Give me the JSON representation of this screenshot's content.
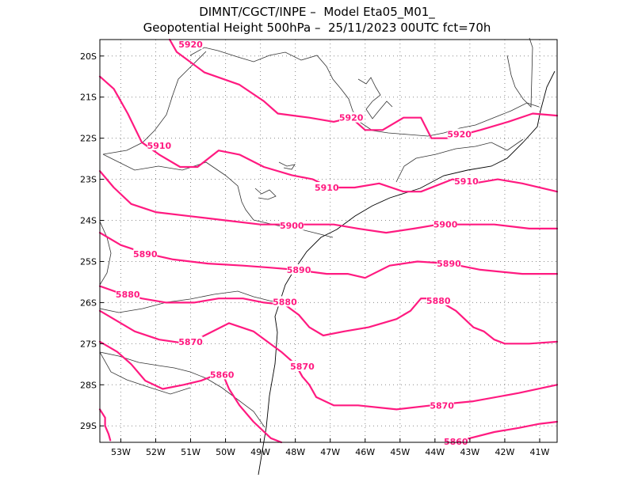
{
  "title": {
    "line1": "DIMNT/CGCT/INPE –  Model Eta05_M01_",
    "line2": "Geopotential Height 500hPa –  25/11/2023 00UTC fct=70h"
  },
  "map": {
    "lon_range": [
      -53.6,
      -40.5
    ],
    "lat_range": [
      -29.4,
      -19.6
    ],
    "lon_ticks": [
      {
        "value": -53,
        "label": "53W"
      },
      {
        "value": -52,
        "label": "52W"
      },
      {
        "value": -51,
        "label": "51W"
      },
      {
        "value": -50,
        "label": "50W"
      },
      {
        "value": -49,
        "label": "49W"
      },
      {
        "value": -48,
        "label": "48W"
      },
      {
        "value": -47,
        "label": "47W"
      },
      {
        "value": -46,
        "label": "46W"
      },
      {
        "value": -45,
        "label": "45W"
      },
      {
        "value": -44,
        "label": "44W"
      },
      {
        "value": -43,
        "label": "43W"
      },
      {
        "value": -42,
        "label": "42W"
      },
      {
        "value": -41,
        "label": "41W"
      }
    ],
    "lat_ticks": [
      {
        "value": -20,
        "label": "20S"
      },
      {
        "value": -21,
        "label": "21S"
      },
      {
        "value": -22,
        "label": "22S"
      },
      {
        "value": -23,
        "label": "23S"
      },
      {
        "value": -24,
        "label": "24S"
      },
      {
        "value": -25,
        "label": "25S"
      },
      {
        "value": -26,
        "label": "26S"
      },
      {
        "value": -27,
        "label": "27S"
      },
      {
        "value": -28,
        "label": "28S"
      },
      {
        "value": -29,
        "label": "29S"
      }
    ],
    "contour_color": "#ff1a80",
    "contours": [
      {
        "level": "5920",
        "points": [
          [
            -51.6,
            -19.6
          ],
          [
            -51.4,
            -19.9
          ],
          [
            -50.6,
            -20.4
          ],
          [
            -49.6,
            -20.7
          ],
          [
            -48.9,
            -21.1
          ],
          [
            -48.5,
            -21.4
          ],
          [
            -47.6,
            -21.5
          ],
          [
            -46.9,
            -21.6
          ],
          [
            -46.4,
            -21.5
          ],
          [
            -46.0,
            -21.8
          ],
          [
            -45.5,
            -21.8
          ],
          [
            -44.9,
            -21.5
          ],
          [
            -44.4,
            -21.5
          ],
          [
            -44.1,
            -22.0
          ],
          [
            -43.6,
            -22.0
          ],
          [
            -42.7,
            -21.8
          ],
          [
            -41.9,
            -21.6
          ],
          [
            -41.2,
            -21.4
          ],
          [
            -40.5,
            -21.45
          ]
        ],
        "labels": [
          {
            "text": "5920",
            "at": [
              -51.0,
              -19.72
            ]
          },
          {
            "text": "5920",
            "at": [
              -46.4,
              -21.5
            ]
          },
          {
            "text": "5920",
            "at": [
              -43.3,
              -21.9
            ]
          }
        ]
      },
      {
        "level": "5910",
        "points": [
          [
            -53.6,
            -20.5
          ],
          [
            -53.2,
            -20.8
          ],
          [
            -52.8,
            -21.4
          ],
          [
            -52.4,
            -22.1
          ],
          [
            -51.9,
            -22.4
          ],
          [
            -51.3,
            -22.7
          ],
          [
            -50.8,
            -22.7
          ],
          [
            -50.2,
            -22.3
          ],
          [
            -49.6,
            -22.4
          ],
          [
            -48.9,
            -22.7
          ],
          [
            -48.1,
            -22.9
          ],
          [
            -47.5,
            -23.0
          ],
          [
            -47.0,
            -23.2
          ],
          [
            -46.3,
            -23.2
          ],
          [
            -45.6,
            -23.1
          ],
          [
            -44.9,
            -23.3
          ],
          [
            -44.4,
            -23.3
          ],
          [
            -43.5,
            -23.0
          ],
          [
            -42.9,
            -23.1
          ],
          [
            -42.2,
            -23.0
          ],
          [
            -41.5,
            -23.1
          ],
          [
            -40.5,
            -23.3
          ]
        ],
        "labels": [
          {
            "text": "5910",
            "at": [
              -51.9,
              -22.18
            ]
          },
          {
            "text": "5910",
            "at": [
              -47.1,
              -23.2
            ]
          },
          {
            "text": "5910",
            "at": [
              -43.1,
              -23.05
            ]
          }
        ]
      },
      {
        "level": "5900",
        "points": [
          [
            -53.6,
            -22.8
          ],
          [
            -53.2,
            -23.2
          ],
          [
            -52.7,
            -23.6
          ],
          [
            -52.0,
            -23.8
          ],
          [
            -51.0,
            -23.9
          ],
          [
            -50.0,
            -24.0
          ],
          [
            -49.0,
            -24.1
          ],
          [
            -48.3,
            -24.1
          ],
          [
            -47.6,
            -24.1
          ],
          [
            -46.9,
            -24.1
          ],
          [
            -46.2,
            -24.2
          ],
          [
            -45.4,
            -24.3
          ],
          [
            -44.6,
            -24.2
          ],
          [
            -43.9,
            -24.1
          ],
          [
            -43.2,
            -24.1
          ],
          [
            -42.3,
            -24.1
          ],
          [
            -41.3,
            -24.2
          ],
          [
            -40.5,
            -24.2
          ]
        ],
        "labels": [
          {
            "text": "5900",
            "at": [
              -48.1,
              -24.12
            ]
          },
          {
            "text": "5900",
            "at": [
              -43.7,
              -24.1
            ]
          }
        ]
      },
      {
        "level": "5890",
        "points": [
          [
            -53.6,
            -24.3
          ],
          [
            -53.0,
            -24.6
          ],
          [
            -52.3,
            -24.8
          ],
          [
            -51.5,
            -24.95
          ],
          [
            -50.5,
            -25.05
          ],
          [
            -49.5,
            -25.1
          ],
          [
            -48.7,
            -25.15
          ],
          [
            -48.0,
            -25.2
          ],
          [
            -47.1,
            -25.3
          ],
          [
            -46.5,
            -25.3
          ],
          [
            -46.0,
            -25.4
          ],
          [
            -45.3,
            -25.1
          ],
          [
            -44.5,
            -25.0
          ],
          [
            -43.6,
            -25.05
          ],
          [
            -42.7,
            -25.2
          ],
          [
            -41.5,
            -25.3
          ],
          [
            -40.5,
            -25.3
          ]
        ],
        "labels": [
          {
            "text": "5890",
            "at": [
              -52.3,
              -24.82
            ]
          },
          {
            "text": "5890",
            "at": [
              -47.9,
              -25.2
            ]
          },
          {
            "text": "5890",
            "at": [
              -43.6,
              -25.05
            ]
          }
        ]
      },
      {
        "level": "5880",
        "points": [
          [
            -53.6,
            -25.6
          ],
          [
            -53.1,
            -25.75
          ],
          [
            -52.4,
            -25.9
          ],
          [
            -51.7,
            -26.0
          ],
          [
            -50.9,
            -26.0
          ],
          [
            -50.2,
            -25.9
          ],
          [
            -49.5,
            -25.9
          ],
          [
            -48.9,
            -26.0
          ],
          [
            -48.3,
            -26.05
          ],
          [
            -47.9,
            -26.3
          ],
          [
            -47.6,
            -26.6
          ],
          [
            -47.2,
            -26.8
          ],
          [
            -46.6,
            -26.7
          ],
          [
            -45.9,
            -26.6
          ],
          [
            -45.1,
            -26.4
          ],
          [
            -44.7,
            -26.2
          ],
          [
            -44.4,
            -25.9
          ],
          [
            -44.0,
            -25.9
          ],
          [
            -43.4,
            -26.2
          ],
          [
            -42.9,
            -26.6
          ],
          [
            -42.6,
            -26.7
          ],
          [
            -42.3,
            -26.9
          ],
          [
            -42.0,
            -27.0
          ],
          [
            -41.3,
            -27.0
          ],
          [
            -40.5,
            -26.95
          ]
        ],
        "labels": [
          {
            "text": "5880",
            "at": [
              -52.8,
              -25.8
            ]
          },
          {
            "text": "5880",
            "at": [
              -48.3,
              -25.98
            ]
          },
          {
            "text": "5880",
            "at": [
              -43.9,
              -25.95
            ]
          }
        ]
      },
      {
        "level": "5870",
        "points": [
          [
            -53.6,
            -26.2
          ],
          [
            -53.2,
            -26.4
          ],
          [
            -52.6,
            -26.7
          ],
          [
            -51.9,
            -26.9
          ],
          [
            -51.1,
            -27.0
          ],
          [
            -50.6,
            -26.8
          ],
          [
            -49.9,
            -26.5
          ],
          [
            -49.2,
            -26.7
          ],
          [
            -48.8,
            -26.95
          ],
          [
            -48.4,
            -27.2
          ],
          [
            -48.0,
            -27.5
          ],
          [
            -47.8,
            -27.8
          ],
          [
            -47.6,
            -28.0
          ],
          [
            -47.4,
            -28.3
          ],
          [
            -46.9,
            -28.5
          ],
          [
            -46.2,
            -28.5
          ],
          [
            -45.1,
            -28.6
          ],
          [
            -44.1,
            -28.5
          ],
          [
            -42.9,
            -28.4
          ],
          [
            -41.6,
            -28.2
          ],
          [
            -40.5,
            -28.0
          ]
        ],
        "labels": [
          {
            "text": "5870",
            "at": [
              -51.0,
              -26.95
            ]
          },
          {
            "text": "5870",
            "at": [
              -47.8,
              -27.55
            ]
          },
          {
            "text": "5870",
            "at": [
              -43.8,
              -28.5
            ]
          }
        ]
      },
      {
        "level": "5860",
        "points": [
          [
            -53.6,
            -26.95
          ],
          [
            -53.1,
            -27.2
          ],
          [
            -52.7,
            -27.5
          ],
          [
            -52.3,
            -27.9
          ],
          [
            -51.8,
            -28.1
          ],
          [
            -51.2,
            -28.0
          ],
          [
            -50.7,
            -27.9
          ],
          [
            -50.1,
            -27.7
          ],
          [
            -49.9,
            -28.1
          ],
          [
            -49.6,
            -28.5
          ],
          [
            -49.2,
            -28.9
          ],
          [
            -48.7,
            -29.3
          ],
          [
            -48.4,
            -29.4
          ]
        ],
        "labels": [
          {
            "text": "5860",
            "at": [
              -50.1,
              -27.75
            ]
          }
        ]
      },
      {
        "level": "5860",
        "points": [
          [
            -43.6,
            -29.4
          ],
          [
            -43.0,
            -29.3
          ],
          [
            -42.3,
            -29.15
          ],
          [
            -41.6,
            -29.05
          ],
          [
            -41.0,
            -28.95
          ],
          [
            -40.5,
            -28.9
          ]
        ],
        "labels": [
          {
            "text": "5860",
            "at": [
              -43.4,
              -29.38
            ]
          }
        ]
      },
      {
        "level": "5860",
        "points": [
          [
            -53.6,
            -28.6
          ],
          [
            -53.45,
            -28.8
          ],
          [
            -53.45,
            -29.0
          ],
          [
            -53.35,
            -29.2
          ],
          [
            -53.3,
            -29.35
          ]
        ],
        "labels": []
      }
    ]
  }
}
